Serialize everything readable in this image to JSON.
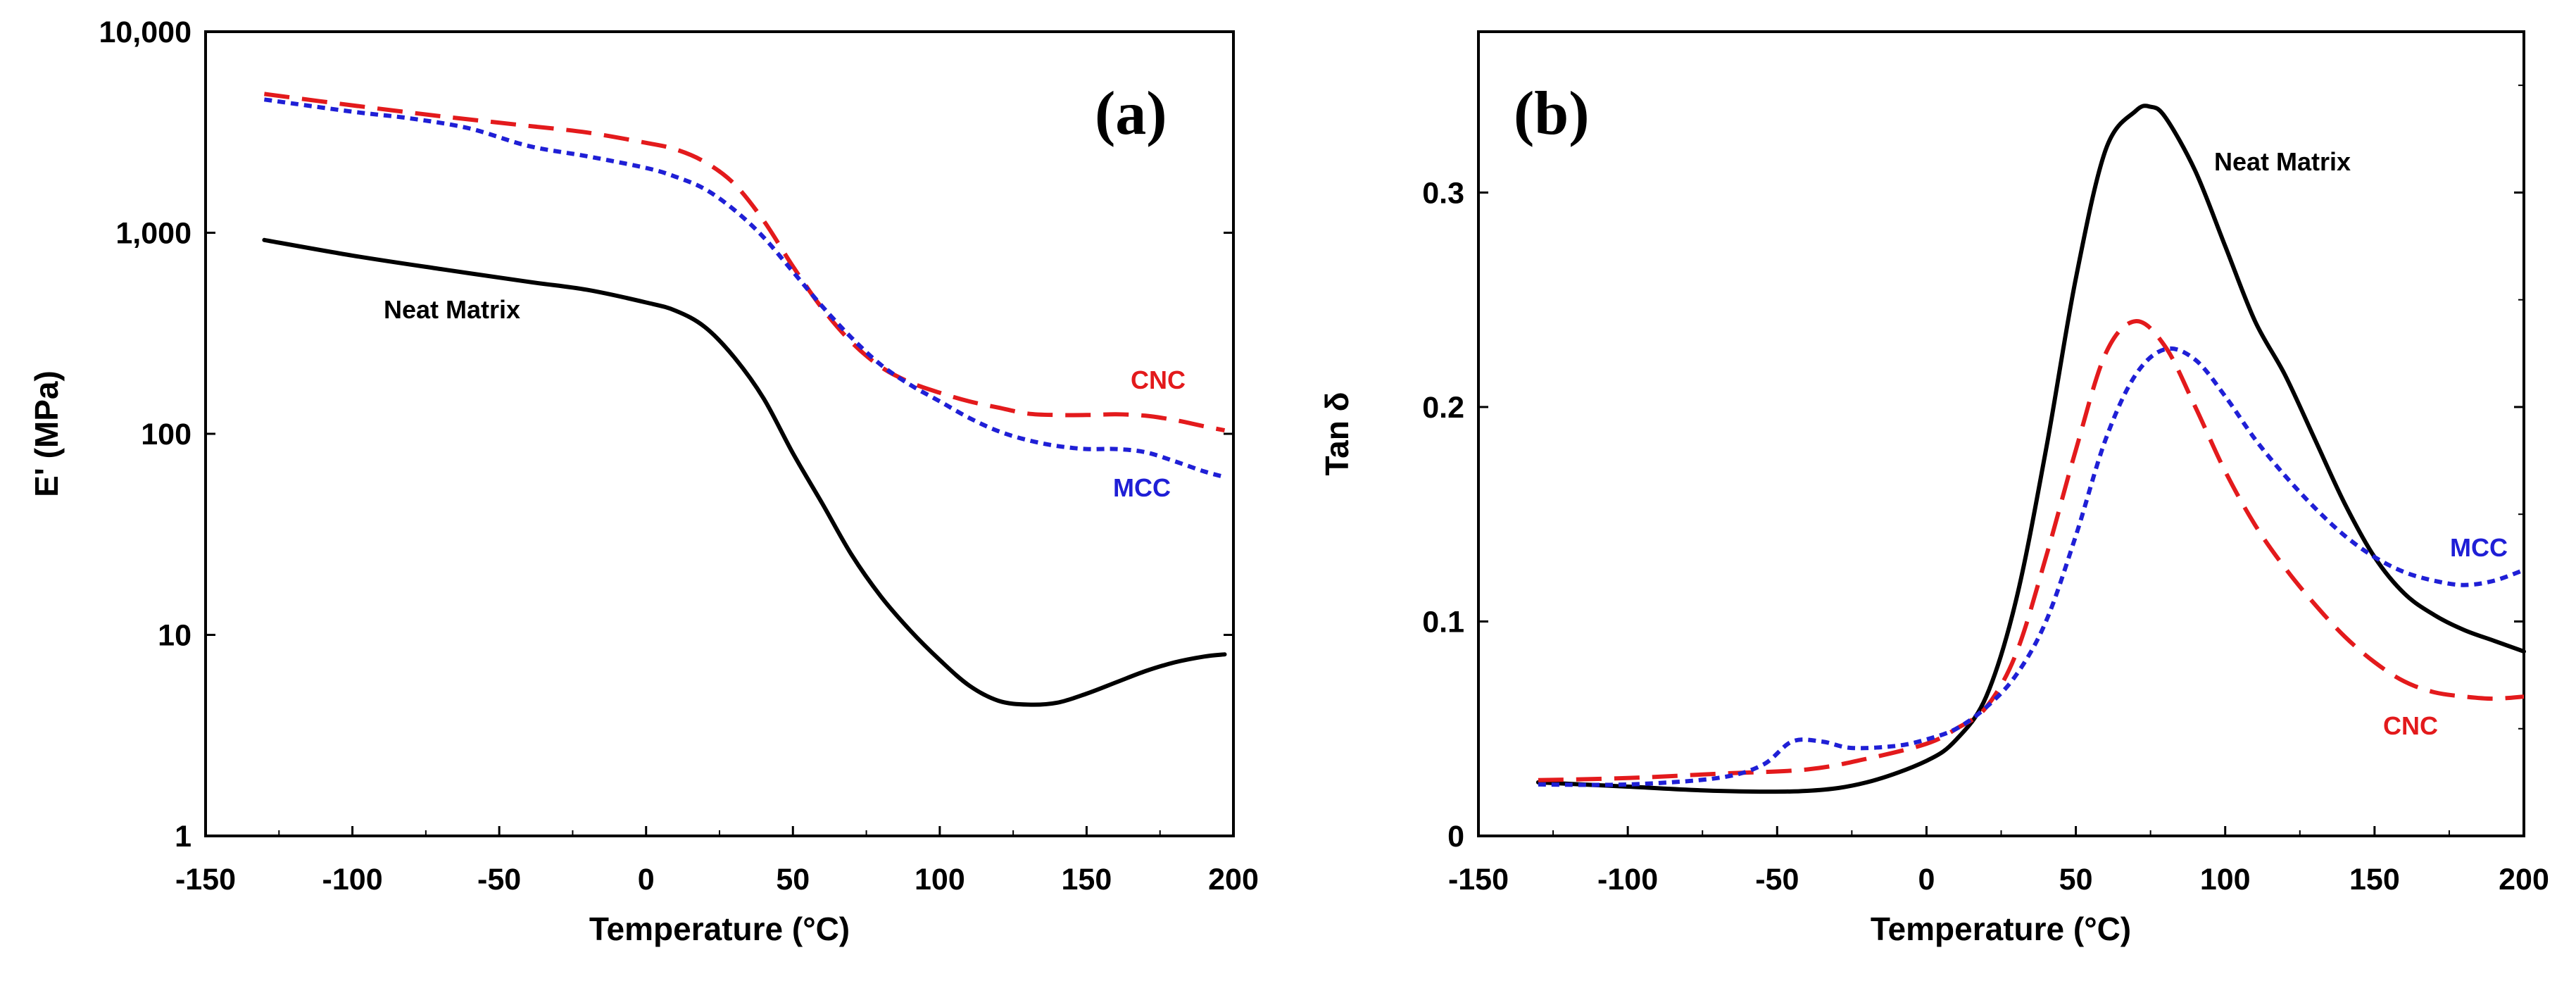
{
  "chart_data": [
    {
      "type": "line",
      "panel_label": "(a)",
      "xlabel": "Temperature (°C)",
      "ylabel": "E' (MPa)",
      "xlim": [
        -150,
        200
      ],
      "ylim": [
        1,
        10000
      ],
      "yscale": "log",
      "x_ticks": [
        -150,
        -100,
        -50,
        0,
        50,
        100,
        150,
        200
      ],
      "x_tick_labels": [
        "-150",
        "-100",
        "-50",
        "0",
        "50",
        "100",
        "150",
        "200"
      ],
      "y_ticks": [
        1,
        10,
        100,
        1000,
        10000
      ],
      "y_tick_labels": [
        "1",
        "10",
        "100",
        "1,000",
        "10,000"
      ],
      "legend": "inline labels",
      "series": [
        {
          "name": "Neat Matrix",
          "color": "#000000",
          "style": "solid",
          "x": [
            -130,
            -100,
            -70,
            -40,
            -20,
            0,
            10,
            20,
            30,
            40,
            50,
            60,
            70,
            80,
            90,
            100,
            110,
            120,
            130,
            140,
            150,
            160,
            170,
            180,
            190,
            197
          ],
          "y": [
            920,
            770,
            660,
            570,
            520,
            450,
            410,
            340,
            240,
            150,
            80,
            45,
            25,
            15.5,
            10.5,
            7.5,
            5.6,
            4.7,
            4.5,
            4.6,
            5.1,
            5.8,
            6.6,
            7.3,
            7.8,
            8.0
          ]
        },
        {
          "name": "CNC",
          "color": "#e31a1c",
          "style": "dashed",
          "x": [
            -130,
            -100,
            -70,
            -40,
            -20,
            0,
            10,
            20,
            30,
            40,
            50,
            60,
            70,
            80,
            90,
            100,
            110,
            120,
            130,
            140,
            150,
            160,
            170,
            180,
            190,
            197
          ],
          "y": [
            4900,
            4300,
            3800,
            3400,
            3150,
            2800,
            2600,
            2250,
            1750,
            1150,
            680,
            420,
            285,
            215,
            180,
            160,
            145,
            135,
            126,
            124,
            124,
            125,
            123,
            117,
            109,
            104
          ]
        },
        {
          "name": "MCC",
          "color": "#1f1fd6",
          "style": "dotted",
          "x": [
            -130,
            -100,
            -80,
            -60,
            -40,
            -20,
            0,
            10,
            20,
            30,
            40,
            50,
            60,
            70,
            80,
            90,
            100,
            110,
            120,
            130,
            140,
            150,
            160,
            170,
            180,
            190,
            197
          ],
          "y": [
            4600,
            4000,
            3700,
            3300,
            2700,
            2400,
            2100,
            1900,
            1650,
            1300,
            950,
            640,
            430,
            300,
            220,
            175,
            145,
            120,
            103,
            93,
            87,
            84,
            84,
            81,
            73,
            65,
            61
          ]
        }
      ],
      "annotations": [
        "Neat Matrix",
        "CNC",
        "MCC"
      ]
    },
    {
      "type": "line",
      "panel_label": "(b)",
      "xlabel": "Temperature (°C)",
      "ylabel": "Tan δ",
      "xlim": [
        -150,
        200
      ],
      "ylim": [
        0,
        0.375
      ],
      "x_ticks": [
        -150,
        -100,
        -50,
        0,
        50,
        100,
        150,
        200
      ],
      "x_tick_labels": [
        "-150",
        "-100",
        "-50",
        "0",
        "50",
        "100",
        "150",
        "200"
      ],
      "y_ticks": [
        0,
        0.1,
        0.2,
        0.3
      ],
      "y_tick_labels": [
        "0",
        "0.1",
        "0.2",
        "0.3"
      ],
      "legend": "inline labels",
      "series": [
        {
          "name": "Neat Matrix",
          "color": "#000000",
          "style": "solid",
          "x": [
            -130,
            -100,
            -70,
            -40,
            -20,
            0,
            10,
            20,
            30,
            40,
            50,
            60,
            70,
            75,
            80,
            90,
            100,
            110,
            120,
            130,
            140,
            150,
            160,
            170,
            180,
            190,
            200
          ],
          "y": [
            0.025,
            0.023,
            0.021,
            0.021,
            0.025,
            0.035,
            0.045,
            0.065,
            0.11,
            0.18,
            0.26,
            0.32,
            0.338,
            0.34,
            0.335,
            0.31,
            0.275,
            0.24,
            0.215,
            0.185,
            0.155,
            0.13,
            0.113,
            0.103,
            0.096,
            0.091,
            0.086
          ]
        },
        {
          "name": "CNC",
          "color": "#e31a1c",
          "style": "dashed",
          "x": [
            -130,
            -100,
            -70,
            -40,
            -20,
            0,
            10,
            20,
            30,
            40,
            50,
            60,
            70,
            80,
            90,
            100,
            110,
            120,
            130,
            140,
            150,
            160,
            170,
            180,
            190,
            200
          ],
          "y": [
            0.026,
            0.027,
            0.029,
            0.031,
            0.036,
            0.043,
            0.05,
            0.06,
            0.085,
            0.13,
            0.18,
            0.225,
            0.24,
            0.228,
            0.2,
            0.17,
            0.145,
            0.125,
            0.108,
            0.093,
            0.081,
            0.072,
            0.067,
            0.065,
            0.064,
            0.065
          ]
        },
        {
          "name": "MCC",
          "color": "#1f1fd6",
          "style": "dotted",
          "x": [
            -130,
            -100,
            -70,
            -55,
            -45,
            -35,
            -25,
            -10,
            0,
            10,
            20,
            30,
            40,
            50,
            60,
            70,
            80,
            90,
            100,
            110,
            120,
            130,
            140,
            150,
            160,
            170,
            180,
            190,
            200
          ],
          "y": [
            0.024,
            0.024,
            0.027,
            0.033,
            0.044,
            0.044,
            0.041,
            0.042,
            0.045,
            0.05,
            0.06,
            0.075,
            0.1,
            0.14,
            0.185,
            0.215,
            0.227,
            0.222,
            0.205,
            0.185,
            0.168,
            0.153,
            0.14,
            0.13,
            0.123,
            0.119,
            0.117,
            0.119,
            0.124
          ]
        }
      ],
      "annotations": [
        "Neat Matrix",
        "MCC",
        "CNC"
      ]
    }
  ]
}
